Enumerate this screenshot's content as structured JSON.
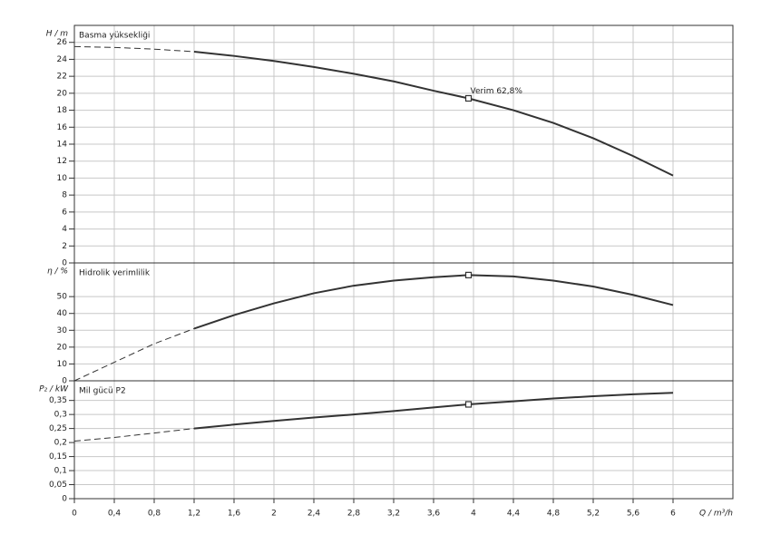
{
  "chart_data": [
    {
      "type": "line",
      "title": "Basma yüksekliği",
      "ylabel": "H / m",
      "x": [
        0,
        0.4,
        0.8,
        1.2,
        1.6,
        2,
        2.4,
        2.8,
        3.2,
        3.6,
        3.95,
        4.4,
        4.8,
        5.2,
        5.6,
        6
      ],
      "series": [
        {
          "style": "dashed",
          "color": "#333333",
          "values": [
            25.5,
            25.4,
            25.2,
            24.9,
            null,
            null,
            null,
            null,
            null,
            null,
            null,
            null,
            null,
            null,
            null,
            null
          ]
        },
        {
          "style": "solid",
          "color": "#333333",
          "values": [
            null,
            null,
            null,
            24.9,
            24.4,
            23.8,
            23.1,
            22.3,
            21.4,
            20.3,
            19.4,
            18.0,
            16.5,
            14.7,
            12.6,
            10.3
          ]
        }
      ],
      "marker": {
        "x": 3.95,
        "y": 19.4
      },
      "annotation": "Verim  62,8%",
      "xlim": [
        0,
        6.6
      ],
      "ylim": [
        0,
        28
      ],
      "yticks": [
        0,
        2,
        4,
        6,
        8,
        10,
        12,
        14,
        16,
        18,
        20,
        22,
        24,
        26
      ],
      "grid": true
    },
    {
      "type": "line",
      "title": "Hidrolik verimlilik",
      "ylabel": "η / %",
      "x": [
        0,
        0.4,
        0.8,
        1.2,
        1.6,
        2,
        2.4,
        2.8,
        3.2,
        3.6,
        3.95,
        4.4,
        4.8,
        5.2,
        5.6,
        6
      ],
      "series": [
        {
          "style": "dashed",
          "color": "#333333",
          "values": [
            0,
            11,
            22,
            31,
            null,
            null,
            null,
            null,
            null,
            null,
            null,
            null,
            null,
            null,
            null,
            null
          ]
        },
        {
          "style": "solid",
          "color": "#333333",
          "values": [
            null,
            null,
            null,
            31,
            39,
            46,
            52,
            56.5,
            59.5,
            61.5,
            62.8,
            62,
            59.5,
            56,
            51,
            45
          ]
        }
      ],
      "marker": {
        "x": 3.95,
        "y": 62.8
      },
      "xlim": [
        0,
        6.6
      ],
      "ylim": [
        0,
        70
      ],
      "yticks": [
        0,
        10,
        20,
        30,
        40,
        50
      ],
      "grid": true
    },
    {
      "type": "line",
      "title": "Mil gücü P2",
      "ylabel": "P₂ / kW",
      "xlabel": "Q / m³/h",
      "x": [
        0,
        0.4,
        0.8,
        1.2,
        1.6,
        2,
        2.4,
        2.8,
        3.2,
        3.6,
        3.95,
        4.4,
        4.8,
        5.2,
        5.6,
        6
      ],
      "series": [
        {
          "style": "dashed",
          "color": "#333333",
          "values": [
            0.205,
            0.218,
            0.234,
            0.25,
            null,
            null,
            null,
            null,
            null,
            null,
            null,
            null,
            null,
            null,
            null,
            null
          ]
        },
        {
          "style": "solid",
          "color": "#333333",
          "values": [
            null,
            null,
            null,
            0.25,
            0.264,
            0.277,
            0.289,
            0.3,
            0.312,
            0.325,
            0.336,
            0.347,
            0.357,
            0.365,
            0.372,
            0.377
          ]
        }
      ],
      "marker": {
        "x": 3.95,
        "y": 0.336
      },
      "xlim": [
        0,
        6.6
      ],
      "ylim": [
        0,
        0.42
      ],
      "yticks": [
        0,
        {
          "value": 0.05,
          "label": "0,05"
        },
        {
          "value": 0.1,
          "label": "0,1"
        },
        {
          "value": 0.15,
          "label": "0,15"
        },
        {
          "value": 0.2,
          "label": "0,2"
        },
        {
          "value": 0.25,
          "label": "0,25"
        },
        {
          "value": 0.3,
          "label": "0,3"
        },
        {
          "value": 0.35,
          "label": "0,35"
        }
      ],
      "xticks": [
        0,
        {
          "value": 0.4,
          "label": "0,4"
        },
        {
          "value": 0.8,
          "label": "0,8"
        },
        {
          "value": 1.2,
          "label": "1,2"
        },
        {
          "value": 1.6,
          "label": "1,6"
        },
        2,
        {
          "value": 2.4,
          "label": "2,4"
        },
        {
          "value": 2.8,
          "label": "2,8"
        },
        {
          "value": 3.2,
          "label": "3,2"
        },
        {
          "value": 3.6,
          "label": "3,6"
        },
        4,
        {
          "value": 4.4,
          "label": "4,4"
        },
        {
          "value": 4.8,
          "label": "4,8"
        },
        {
          "value": 5.2,
          "label": "5,2"
        },
        {
          "value": 5.6,
          "label": "5,6"
        },
        6
      ],
      "grid": true
    }
  ]
}
